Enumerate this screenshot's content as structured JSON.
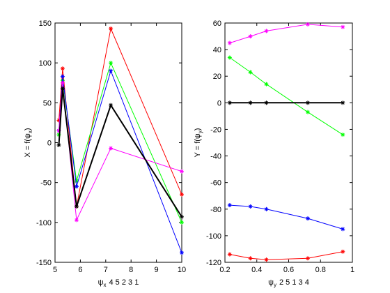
{
  "chart_data": [
    {
      "type": "line",
      "xlabel": "ψ",
      "xlabel_sub": "x",
      "xlabel_suffix": "4 5 2 3 1",
      "ylabel": "X = f(ψ",
      "ylabel_sub": "x",
      "ylabel_suffix": ")",
      "xlim": [
        5,
        10
      ],
      "ylim": [
        -150,
        150
      ],
      "xticks": [
        5,
        6,
        7,
        8,
        9,
        10
      ],
      "yticks": [
        -150,
        -100,
        -50,
        0,
        50,
        100,
        150
      ],
      "grid": false,
      "series": [
        {
          "color": "#ff0000",
          "width": 1,
          "x": [
            5.15,
            5.3,
            5.85,
            7.2,
            10
          ],
          "y": [
            28,
            93,
            -80,
            143,
            -65
          ]
        },
        {
          "color": "#00ff00",
          "width": 1,
          "x": [
            5.15,
            5.3,
            5.85,
            7.2,
            10
          ],
          "y": [
            10,
            78,
            -48,
            100,
            -100
          ]
        },
        {
          "color": "#0000ff",
          "width": 1,
          "x": [
            5.15,
            5.3,
            5.85,
            7.2,
            10
          ],
          "y": [
            15,
            83,
            -55,
            90,
            -138
          ]
        },
        {
          "color": "#ff00ff",
          "width": 1,
          "x": [
            5.15,
            5.3,
            5.85,
            7.2,
            10
          ],
          "y": [
            15,
            75,
            -97,
            -7,
            -36
          ]
        },
        {
          "color": "#000000",
          "width": 2,
          "x": [
            5.15,
            5.3,
            5.85,
            7.2,
            10
          ],
          "y": [
            -3,
            68,
            -80,
            47,
            -93
          ]
        }
      ]
    },
    {
      "type": "line",
      "xlabel": "ψ",
      "xlabel_sub": "y",
      "xlabel_suffix": "2 5 1 3 4",
      "ylabel": "Y = f(ψ",
      "ylabel_sub": "y",
      "ylabel_suffix": ")",
      "xlim": [
        0.2,
        1
      ],
      "ylim": [
        -120,
        60
      ],
      "xticks": [
        0.2,
        0.4,
        0.6,
        0.8,
        1
      ],
      "yticks": [
        -120,
        -100,
        -80,
        -60,
        -40,
        -20,
        0,
        20,
        40,
        60
      ],
      "grid": false,
      "series": [
        {
          "color": "#ff00ff",
          "width": 1,
          "x": [
            0.23,
            0.36,
            0.46,
            0.72,
            0.94
          ],
          "y": [
            45,
            50,
            54,
            59,
            57
          ]
        },
        {
          "color": "#00ff00",
          "width": 1,
          "x": [
            0.23,
            0.36,
            0.46,
            0.72,
            0.94
          ],
          "y": [
            34,
            23,
            14,
            -7,
            -24
          ]
        },
        {
          "color": "#000000",
          "width": 2,
          "x": [
            0.23,
            0.36,
            0.46,
            0.72,
            0.94
          ],
          "y": [
            0,
            0,
            0,
            0,
            0
          ]
        },
        {
          "color": "#0000ff",
          "width": 1,
          "x": [
            0.23,
            0.36,
            0.46,
            0.72,
            0.94
          ],
          "y": [
            -77,
            -78,
            -80,
            -87,
            -95
          ]
        },
        {
          "color": "#ff0000",
          "width": 1,
          "x": [
            0.23,
            0.36,
            0.46,
            0.72,
            0.94
          ],
          "y": [
            -114,
            -117,
            -118,
            -117,
            -112
          ]
        }
      ]
    }
  ]
}
